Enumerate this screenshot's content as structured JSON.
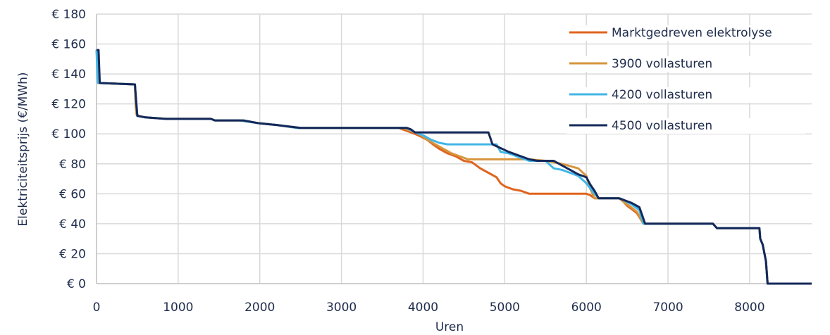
{
  "chart_data": {
    "type": "line",
    "title": "",
    "xlabel": "Uren",
    "ylabel": "Elektriciteitsprijs (€/MWh)",
    "xlim": [
      0,
      8760
    ],
    "ylim": [
      0,
      180
    ],
    "x_ticks": [
      0,
      1000,
      2000,
      3000,
      4000,
      5000,
      6000,
      7000,
      8000
    ],
    "x_tick_labels": [
      "0",
      "1000",
      "2000",
      "3000",
      "4000",
      "5000",
      "6000",
      "7000",
      "8000"
    ],
    "y_ticks": [
      0,
      20,
      40,
      60,
      80,
      100,
      120,
      140,
      160,
      180
    ],
    "y_tick_labels": [
      "€ 0",
      "€ 20",
      "€ 40",
      "€ 60",
      "€ 80",
      "€ 100",
      "€ 120",
      "€ 140",
      "€ 160",
      "€ 180"
    ],
    "grid": true,
    "legend_position": "top-right",
    "series": [
      {
        "name": "Marktgedreven elektrolyse",
        "color": "#e0641e",
        "points": [
          [
            0,
            156
          ],
          [
            15,
            146
          ],
          [
            20,
            134
          ],
          [
            470,
            133
          ],
          [
            480,
            120
          ],
          [
            490,
            113
          ],
          [
            520,
            112
          ],
          [
            600,
            111
          ],
          [
            850,
            110
          ],
          [
            1400,
            110
          ],
          [
            1450,
            109
          ],
          [
            1750,
            109
          ],
          [
            2000,
            107
          ],
          [
            2200,
            106
          ],
          [
            2450,
            104
          ],
          [
            3700,
            104
          ],
          [
            3800,
            102
          ],
          [
            3900,
            100
          ],
          [
            3980,
            98
          ],
          [
            4050,
            96
          ],
          [
            4120,
            93
          ],
          [
            4200,
            90
          ],
          [
            4300,
            87
          ],
          [
            4400,
            85
          ],
          [
            4500,
            82
          ],
          [
            4600,
            81
          ],
          [
            4700,
            77
          ],
          [
            4800,
            74
          ],
          [
            4900,
            71
          ],
          [
            4950,
            67
          ],
          [
            5000,
            65
          ],
          [
            5100,
            63
          ],
          [
            5200,
            62
          ],
          [
            5300,
            60
          ],
          [
            5900,
            60
          ],
          [
            6000,
            60
          ],
          [
            6050,
            59
          ],
          [
            6100,
            57
          ],
          [
            6400,
            57
          ],
          [
            6450,
            55
          ],
          [
            6500,
            52
          ],
          [
            6550,
            50
          ],
          [
            6620,
            47
          ],
          [
            6700,
            40
          ],
          [
            7550,
            40
          ],
          [
            7600,
            37
          ],
          [
            8120,
            37
          ],
          [
            8130,
            30
          ],
          [
            8160,
            26
          ],
          [
            8200,
            15
          ],
          [
            8220,
            0
          ],
          [
            8760,
            0
          ]
        ]
      },
      {
        "name": "3900 vollasturen",
        "color": "#d7953e",
        "points": [
          [
            0,
            156
          ],
          [
            15,
            146
          ],
          [
            20,
            134
          ],
          [
            470,
            133
          ],
          [
            480,
            118
          ],
          [
            490,
            113
          ],
          [
            520,
            112
          ],
          [
            600,
            111
          ],
          [
            850,
            110
          ],
          [
            1400,
            110
          ],
          [
            1450,
            109
          ],
          [
            1750,
            109
          ],
          [
            2000,
            107
          ],
          [
            2200,
            106
          ],
          [
            2450,
            104
          ],
          [
            3750,
            104
          ],
          [
            3850,
            102
          ],
          [
            3950,
            100
          ],
          [
            4050,
            96
          ],
          [
            4150,
            93
          ],
          [
            4250,
            90
          ],
          [
            4350,
            87
          ],
          [
            4450,
            85
          ],
          [
            4550,
            83
          ],
          [
            5300,
            83
          ],
          [
            5500,
            82
          ],
          [
            5700,
            80
          ],
          [
            5900,
            77
          ],
          [
            6000,
            72
          ],
          [
            6050,
            63
          ],
          [
            6100,
            57
          ],
          [
            6400,
            57
          ],
          [
            6470,
            54
          ],
          [
            6550,
            51
          ],
          [
            6620,
            48
          ],
          [
            6700,
            40
          ],
          [
            7550,
            40
          ],
          [
            7600,
            37
          ],
          [
            8120,
            37
          ],
          [
            8130,
            30
          ],
          [
            8160,
            26
          ],
          [
            8200,
            15
          ],
          [
            8220,
            0
          ],
          [
            8760,
            0
          ]
        ]
      },
      {
        "name": "4200 vollasturen",
        "color": "#41b6e6",
        "points": [
          [
            0,
            156
          ],
          [
            10,
            140
          ],
          [
            20,
            134
          ],
          [
            470,
            133
          ],
          [
            480,
            125
          ],
          [
            500,
            112
          ],
          [
            600,
            111
          ],
          [
            850,
            110
          ],
          [
            1400,
            110
          ],
          [
            1450,
            109
          ],
          [
            1750,
            109
          ],
          [
            2000,
            107
          ],
          [
            2200,
            106
          ],
          [
            2450,
            104
          ],
          [
            3800,
            104
          ],
          [
            3900,
            101
          ],
          [
            4000,
            99
          ],
          [
            4100,
            96
          ],
          [
            4200,
            94
          ],
          [
            4300,
            93
          ],
          [
            4900,
            93
          ],
          [
            4950,
            88
          ],
          [
            5050,
            87
          ],
          [
            5200,
            84
          ],
          [
            5300,
            82
          ],
          [
            5500,
            82
          ],
          [
            5600,
            77
          ],
          [
            5700,
            76
          ],
          [
            5800,
            74
          ],
          [
            5900,
            72
          ],
          [
            6000,
            67
          ],
          [
            6100,
            60
          ],
          [
            6150,
            57
          ],
          [
            6400,
            57
          ],
          [
            6450,
            56
          ],
          [
            6550,
            53
          ],
          [
            6650,
            49
          ],
          [
            6700,
            40
          ],
          [
            7550,
            40
          ],
          [
            7600,
            37
          ],
          [
            8120,
            37
          ],
          [
            8130,
            30
          ],
          [
            8160,
            26
          ],
          [
            8200,
            15
          ],
          [
            8220,
            0
          ],
          [
            8760,
            0
          ]
        ]
      },
      {
        "name": "4500 vollasturen",
        "color": "#14285a",
        "points": [
          [
            0,
            156
          ],
          [
            25,
            156
          ],
          [
            30,
            148
          ],
          [
            40,
            134
          ],
          [
            470,
            133
          ],
          [
            480,
            126
          ],
          [
            500,
            112
          ],
          [
            600,
            111
          ],
          [
            850,
            110
          ],
          [
            1400,
            110
          ],
          [
            1450,
            109
          ],
          [
            1800,
            109
          ],
          [
            2000,
            107
          ],
          [
            2200,
            106
          ],
          [
            2500,
            104
          ],
          [
            3800,
            104
          ],
          [
            3850,
            103
          ],
          [
            3900,
            101
          ],
          [
            4800,
            101
          ],
          [
            4850,
            93
          ],
          [
            5050,
            88
          ],
          [
            5200,
            85
          ],
          [
            5300,
            83
          ],
          [
            5400,
            82
          ],
          [
            5600,
            82
          ],
          [
            5700,
            79
          ],
          [
            5800,
            76
          ],
          [
            5900,
            73
          ],
          [
            6000,
            71
          ],
          [
            6050,
            66
          ],
          [
            6100,
            62
          ],
          [
            6150,
            57
          ],
          [
            6400,
            57
          ],
          [
            6450,
            56
          ],
          [
            6550,
            54
          ],
          [
            6650,
            51
          ],
          [
            6720,
            40
          ],
          [
            7550,
            40
          ],
          [
            7600,
            37
          ],
          [
            8120,
            37
          ],
          [
            8130,
            30
          ],
          [
            8160,
            26
          ],
          [
            8200,
            15
          ],
          [
            8220,
            0
          ],
          [
            8760,
            0
          ]
        ]
      }
    ]
  }
}
